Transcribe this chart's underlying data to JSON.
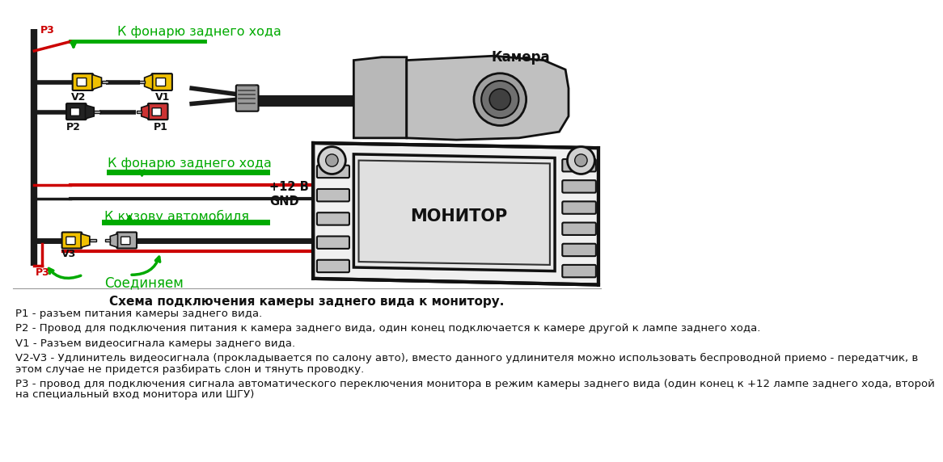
{
  "bg_color": "#ffffff",
  "title_text": "Схема подключения камеры заднего вида к монитору.",
  "label_p1": "P1",
  "label_p2": "P2",
  "label_v1": "V1",
  "label_v2": "V2",
  "label_v3": "V3",
  "label_p3": "P3",
  "label_camera": "Камера",
  "label_monitor": "МОНИТОР",
  "label_k_fonaru1": "К фонарю заднего хода",
  "label_k_fonaru2": "К фонарю заднего хода",
  "label_k_kuzovu": "К кузову автомобиля",
  "label_soed": "Соединяем",
  "label_12v": "+12 В",
  "label_gnd": "GND",
  "desc_p1": "P1 - разъем питания камеры заднего вида.",
  "desc_p2": "P2 - Провод для подключения питания к камера заднего вида, один конец подключается к камере другой к лампе заднего хода.",
  "desc_v1": "V1 - Разъем видеосигнала камеры заднего вида.",
  "desc_v2v3_1": "V2-V3 - Удлинитель видеосигнала (прокладывается по салону авто), вместо данного удлинителя можно использовать беспроводной приемо - передатчик, в",
  "desc_v2v3_2": "этом случае не придется разбирать слон и тянуть проводку.",
  "desc_p3_1": "Р3 - провод для подключения сигнала автоматического переключения монитора в режим камеры заднего вида (один конец к +12 лампе заднего хода, второй",
  "desc_p3_2": "на специальный вход монитора или ШГУ)",
  "green": "#00aa00",
  "red": "#cc0000",
  "yellow": "#f0c000",
  "black": "#111111",
  "gray": "#888888",
  "dark_gray": "#444444",
  "mid_gray": "#999999",
  "light_gray": "#cccccc",
  "white": "#ffffff",
  "wire_black": "#1a1a1a"
}
